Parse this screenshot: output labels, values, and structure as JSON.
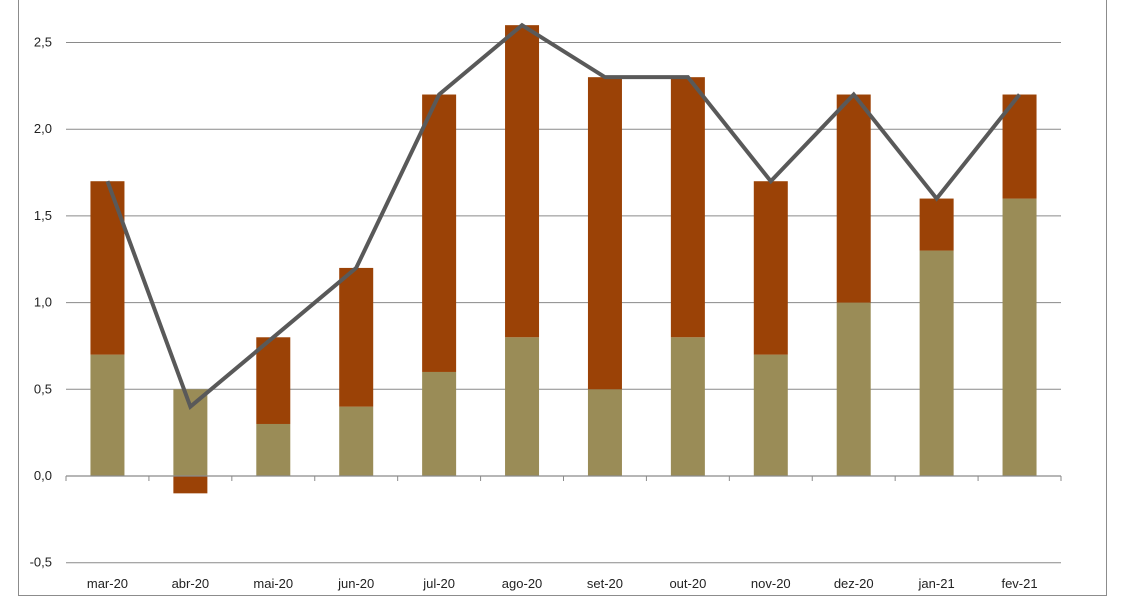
{
  "chart_data": {
    "type": "bar",
    "stacked": true,
    "categories": [
      "mar-20",
      "abr-20",
      "mai-20",
      "jun-20",
      "jul-20",
      "ago-20",
      "set-20",
      "out-20",
      "nov-20",
      "dez-20",
      "jan-21",
      "fev-21"
    ],
    "series": [
      {
        "type": "bar",
        "color": "#9a8c57",
        "values": [
          0.7,
          0.5,
          0.3,
          0.4,
          0.6,
          0.8,
          0.5,
          0.8,
          0.7,
          1.0,
          1.3,
          1.6
        ]
      },
      {
        "type": "bar",
        "color": "#9b4206",
        "values": [
          1.0,
          -0.1,
          0.5,
          0.8,
          1.6,
          1.8,
          1.8,
          1.5,
          1.0,
          1.2,
          0.3,
          0.6
        ]
      },
      {
        "type": "line",
        "color": "#595959",
        "values": [
          1.7,
          0.4,
          0.8,
          1.2,
          2.2,
          2.6,
          2.3,
          2.3,
          1.7,
          2.2,
          1.6,
          2.2
        ]
      }
    ],
    "y_ticks": [
      "-0,5",
      "0,0",
      "0,5",
      "1,0",
      "1,5",
      "2,0",
      "2,5"
    ],
    "y_tick_values": [
      -0.5,
      0,
      0.5,
      1.0,
      1.5,
      2.0,
      2.5
    ],
    "ylim": [
      -0.5,
      2.7
    ],
    "grid": true,
    "legend": "none"
  }
}
